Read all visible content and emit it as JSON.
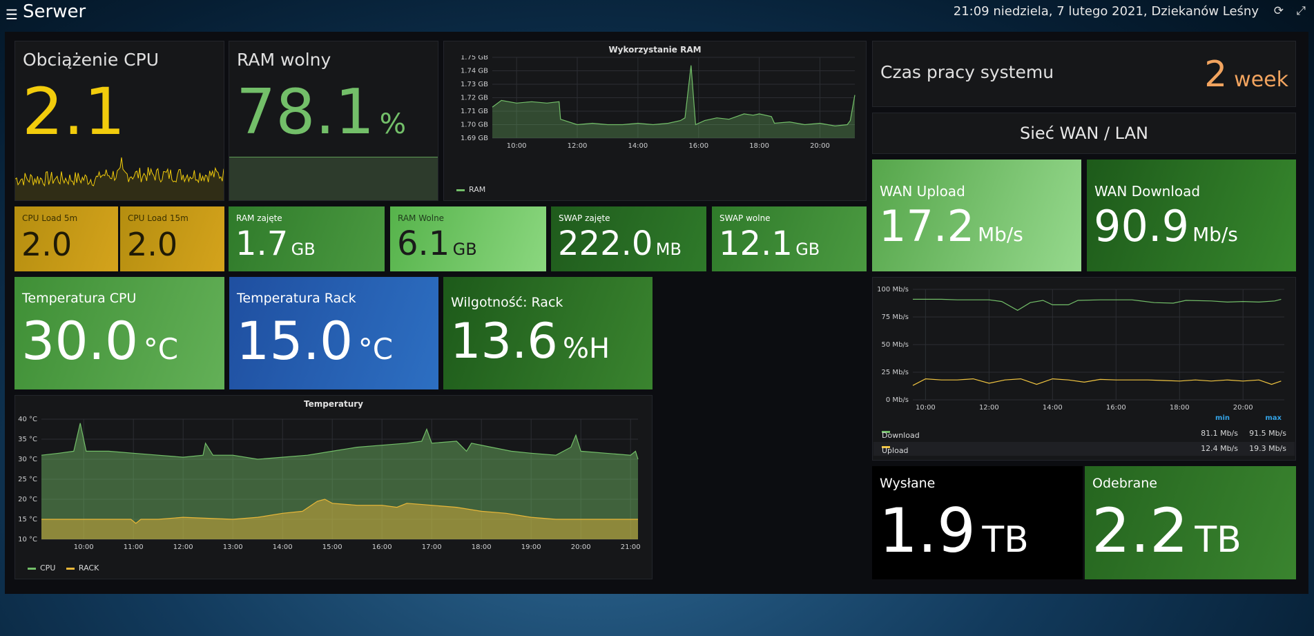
{
  "app": {
    "title": "Serwer",
    "menu_icon": "hamburger-menu-icon"
  },
  "header": {
    "datetime": "21:09 niedziela, 7 lutego 2021, Dziekanów Leśny",
    "refresh_icon": "refresh-icon",
    "expand_icon": "expand-icon"
  },
  "cpu_load": {
    "title": "Obciążenie CPU",
    "value": "2.1",
    "color": "#f2cc0c"
  },
  "ram_free": {
    "title": "RAM wolny",
    "value": "78.1",
    "unit": "%",
    "color": "#73bf69"
  },
  "ram_usage": {
    "title": "Wykorzystanie RAM",
    "legend": "RAM",
    "chart_data": {
      "type": "area",
      "title": "Wykorzystanie RAM",
      "x_ticks": [
        "10:00",
        "12:00",
        "14:00",
        "16:00",
        "18:00",
        "20:00"
      ],
      "y_ticks": [
        "1.69 GB",
        "1.70 GB",
        "1.71 GB",
        "1.72 GB",
        "1.73 GB",
        "1.74 GB",
        "1.75 GB"
      ],
      "ylim": [
        1.69,
        1.75
      ],
      "xlim": [
        9.2,
        21.15
      ],
      "series": [
        {
          "name": "RAM",
          "color": "#73bf69",
          "points": [
            [
              9.2,
              1.713
            ],
            [
              9.5,
              1.718
            ],
            [
              10.0,
              1.716
            ],
            [
              10.5,
              1.717
            ],
            [
              11.0,
              1.716
            ],
            [
              11.4,
              1.717
            ],
            [
              11.45,
              1.704
            ],
            [
              12.0,
              1.7
            ],
            [
              12.5,
              1.701
            ],
            [
              13.0,
              1.7
            ],
            [
              13.5,
              1.7
            ],
            [
              14.0,
              1.701
            ],
            [
              14.5,
              1.7
            ],
            [
              15.0,
              1.701
            ],
            [
              15.4,
              1.703
            ],
            [
              15.55,
              1.705
            ],
            [
              15.75,
              1.744
            ],
            [
              15.9,
              1.7
            ],
            [
              16.2,
              1.703
            ],
            [
              16.6,
              1.705
            ],
            [
              17.0,
              1.704
            ],
            [
              17.5,
              1.708
            ],
            [
              17.8,
              1.707
            ],
            [
              18.0,
              1.708
            ],
            [
              18.4,
              1.706
            ],
            [
              18.5,
              1.701
            ],
            [
              19.0,
              1.702
            ],
            [
              19.5,
              1.7
            ],
            [
              20.0,
              1.701
            ],
            [
              20.5,
              1.699
            ],
            [
              20.9,
              1.7
            ],
            [
              21.0,
              1.703
            ],
            [
              21.15,
              1.722
            ]
          ]
        }
      ]
    }
  },
  "uptime": {
    "title": "Czas pracy systemu",
    "value": "2",
    "unit": "week",
    "color": "#f2a45f"
  },
  "network_header": {
    "title": "Sieć WAN / LAN"
  },
  "wan_upload": {
    "title": "WAN Upload",
    "value": "17.2",
    "unit": "Mb/s"
  },
  "wan_download": {
    "title": "WAN Download",
    "value": "90.9",
    "unit": "Mb/s"
  },
  "cpu_load_5m": {
    "title": "CPU Load 5m",
    "value": "2.0"
  },
  "cpu_load_15m": {
    "title": "CPU Load 15m",
    "value": "2.0"
  },
  "ram_used": {
    "title": "RAM zajęte",
    "value": "1.7",
    "unit": "GB"
  },
  "ram_free_gb": {
    "title": "RAM Wolne",
    "value": "6.1",
    "unit": "GB"
  },
  "swap_used": {
    "title": "SWAP zajęte",
    "value": "222.0",
    "unit": "MB"
  },
  "swap_free": {
    "title": "SWAP wolne",
    "value": "12.1",
    "unit": "GB"
  },
  "temp_cpu": {
    "title": "Temperatura CPU",
    "value": "30.0",
    "unit": "°C"
  },
  "temp_rack": {
    "title": "Temperatura Rack",
    "value": "15.0",
    "unit": "°C"
  },
  "humidity_rack": {
    "title": "Wilgotność: Rack",
    "value": "13.6",
    "unit": "%H"
  },
  "network_chart": {
    "legend_header": {
      "min": "min",
      "max": "max"
    },
    "legend_rows": [
      {
        "name": "Download",
        "min": "81.1 Mb/s",
        "max": "91.5 Mb/s",
        "color": "#73bf69"
      },
      {
        "name": "Upload",
        "min": "12.4 Mb/s",
        "max": "19.3 Mb/s",
        "color": "#f2c641"
      }
    ],
    "chart_data": {
      "type": "line",
      "x_ticks": [
        "10:00",
        "12:00",
        "14:00",
        "16:00",
        "18:00",
        "20:00"
      ],
      "y_ticks": [
        "0 Mb/s",
        "25 Mb/s",
        "50 Mb/s",
        "75 Mb/s",
        "100 Mb/s"
      ],
      "ylim": [
        0,
        100
      ],
      "xlim": [
        9.6,
        21.3
      ],
      "series": [
        {
          "name": "Download",
          "color": "#73bf69",
          "points": [
            [
              9.6,
              91
            ],
            [
              10.5,
              91
            ],
            [
              11.0,
              90.5
            ],
            [
              12.0,
              90.5
            ],
            [
              12.4,
              89
            ],
            [
              12.9,
              81
            ],
            [
              13.3,
              88
            ],
            [
              13.7,
              90
            ],
            [
              14.0,
              86
            ],
            [
              14.5,
              86
            ],
            [
              14.8,
              90
            ],
            [
              15.5,
              90.5
            ],
            [
              16.5,
              90.5
            ],
            [
              17.2,
              88
            ],
            [
              17.8,
              87.5
            ],
            [
              18.2,
              90
            ],
            [
              19.0,
              89.5
            ],
            [
              19.5,
              88.5
            ],
            [
              20.0,
              89
            ],
            [
              20.5,
              88.5
            ],
            [
              21.0,
              89.5
            ],
            [
              21.2,
              91
            ]
          ]
        },
        {
          "name": "Upload",
          "color": "#f2c641",
          "points": [
            [
              9.6,
              13
            ],
            [
              10.0,
              19
            ],
            [
              10.5,
              18
            ],
            [
              11.0,
              18
            ],
            [
              11.5,
              19
            ],
            [
              12.0,
              15
            ],
            [
              12.5,
              18
            ],
            [
              13.0,
              19
            ],
            [
              13.5,
              14
            ],
            [
              14.0,
              19
            ],
            [
              14.5,
              18
            ],
            [
              15.0,
              16
            ],
            [
              15.5,
              18.5
            ],
            [
              16.0,
              18
            ],
            [
              16.5,
              18
            ],
            [
              17.0,
              18
            ],
            [
              17.5,
              17.5
            ],
            [
              18.0,
              17
            ],
            [
              18.5,
              18
            ],
            [
              19.0,
              17
            ],
            [
              19.5,
              18
            ],
            [
              20.0,
              17
            ],
            [
              20.5,
              18
            ],
            [
              20.9,
              14
            ],
            [
              21.2,
              17
            ]
          ]
        }
      ]
    }
  },
  "sent": {
    "title": "Wysłane",
    "value": "1.9",
    "unit": "TB"
  },
  "received": {
    "title": "Odebrane",
    "value": "2.2",
    "unit": "TB"
  },
  "temperatures": {
    "title": "Temperatury",
    "chart_data": {
      "type": "area",
      "title": "Temperatury",
      "x_ticks": [
        "10:00",
        "11:00",
        "12:00",
        "13:00",
        "14:00",
        "15:00",
        "16:00",
        "17:00",
        "18:00",
        "19:00",
        "20:00",
        "21:00"
      ],
      "y_ticks": [
        "10 °C",
        "15 °C",
        "20 °C",
        "25 °C",
        "30 °C",
        "35 °C",
        "40 °C"
      ],
      "ylim": [
        10,
        40
      ],
      "xlim": [
        9.15,
        21.15
      ],
      "series": [
        {
          "name": "CPU",
          "color": "#73bf69",
          "points": [
            [
              9.15,
              31
            ],
            [
              9.5,
              31.5
            ],
            [
              9.8,
              32
            ],
            [
              9.93,
              39
            ],
            [
              10.05,
              32
            ],
            [
              10.5,
              32
            ],
            [
              11.0,
              31.5
            ],
            [
              11.5,
              31
            ],
            [
              12.0,
              30.5
            ],
            [
              12.4,
              31
            ],
            [
              12.45,
              34
            ],
            [
              12.6,
              31
            ],
            [
              13.0,
              31
            ],
            [
              13.5,
              30
            ],
            [
              14.0,
              30.5
            ],
            [
              14.5,
              31
            ],
            [
              15.0,
              32
            ],
            [
              15.5,
              33
            ],
            [
              16.0,
              33.5
            ],
            [
              16.5,
              34
            ],
            [
              16.8,
              34.5
            ],
            [
              16.9,
              37.5
            ],
            [
              17.0,
              34
            ],
            [
              17.5,
              34.5
            ],
            [
              17.7,
              32
            ],
            [
              17.8,
              34
            ],
            [
              18.2,
              33
            ],
            [
              18.6,
              32
            ],
            [
              19.0,
              31.5
            ],
            [
              19.5,
              31
            ],
            [
              19.8,
              33
            ],
            [
              19.9,
              36
            ],
            [
              20.0,
              32
            ],
            [
              20.5,
              31.5
            ],
            [
              21.0,
              31
            ],
            [
              21.1,
              32
            ],
            [
              21.15,
              30
            ]
          ]
        },
        {
          "name": "RACK",
          "color": "#eab839",
          "points": [
            [
              9.15,
              15
            ],
            [
              9.5,
              15
            ],
            [
              10.0,
              15
            ],
            [
              10.5,
              15
            ],
            [
              10.95,
              15
            ],
            [
              11.05,
              14
            ],
            [
              11.15,
              15
            ],
            [
              11.5,
              15
            ],
            [
              12.0,
              15.5
            ],
            [
              13.0,
              15
            ],
            [
              13.5,
              15.5
            ],
            [
              14.0,
              16.5
            ],
            [
              14.4,
              17
            ],
            [
              14.7,
              19.5
            ],
            [
              14.85,
              20
            ],
            [
              15.0,
              19
            ],
            [
              15.5,
              18.5
            ],
            [
              16.0,
              18.5
            ],
            [
              16.3,
              18
            ],
            [
              16.5,
              19
            ],
            [
              17.0,
              18.5
            ],
            [
              17.5,
              18
            ],
            [
              18.0,
              17
            ],
            [
              18.5,
              16.5
            ],
            [
              19.0,
              15.5
            ],
            [
              19.5,
              15
            ],
            [
              20.0,
              15
            ],
            [
              20.5,
              15
            ],
            [
              21.15,
              15
            ]
          ]
        }
      ]
    }
  }
}
